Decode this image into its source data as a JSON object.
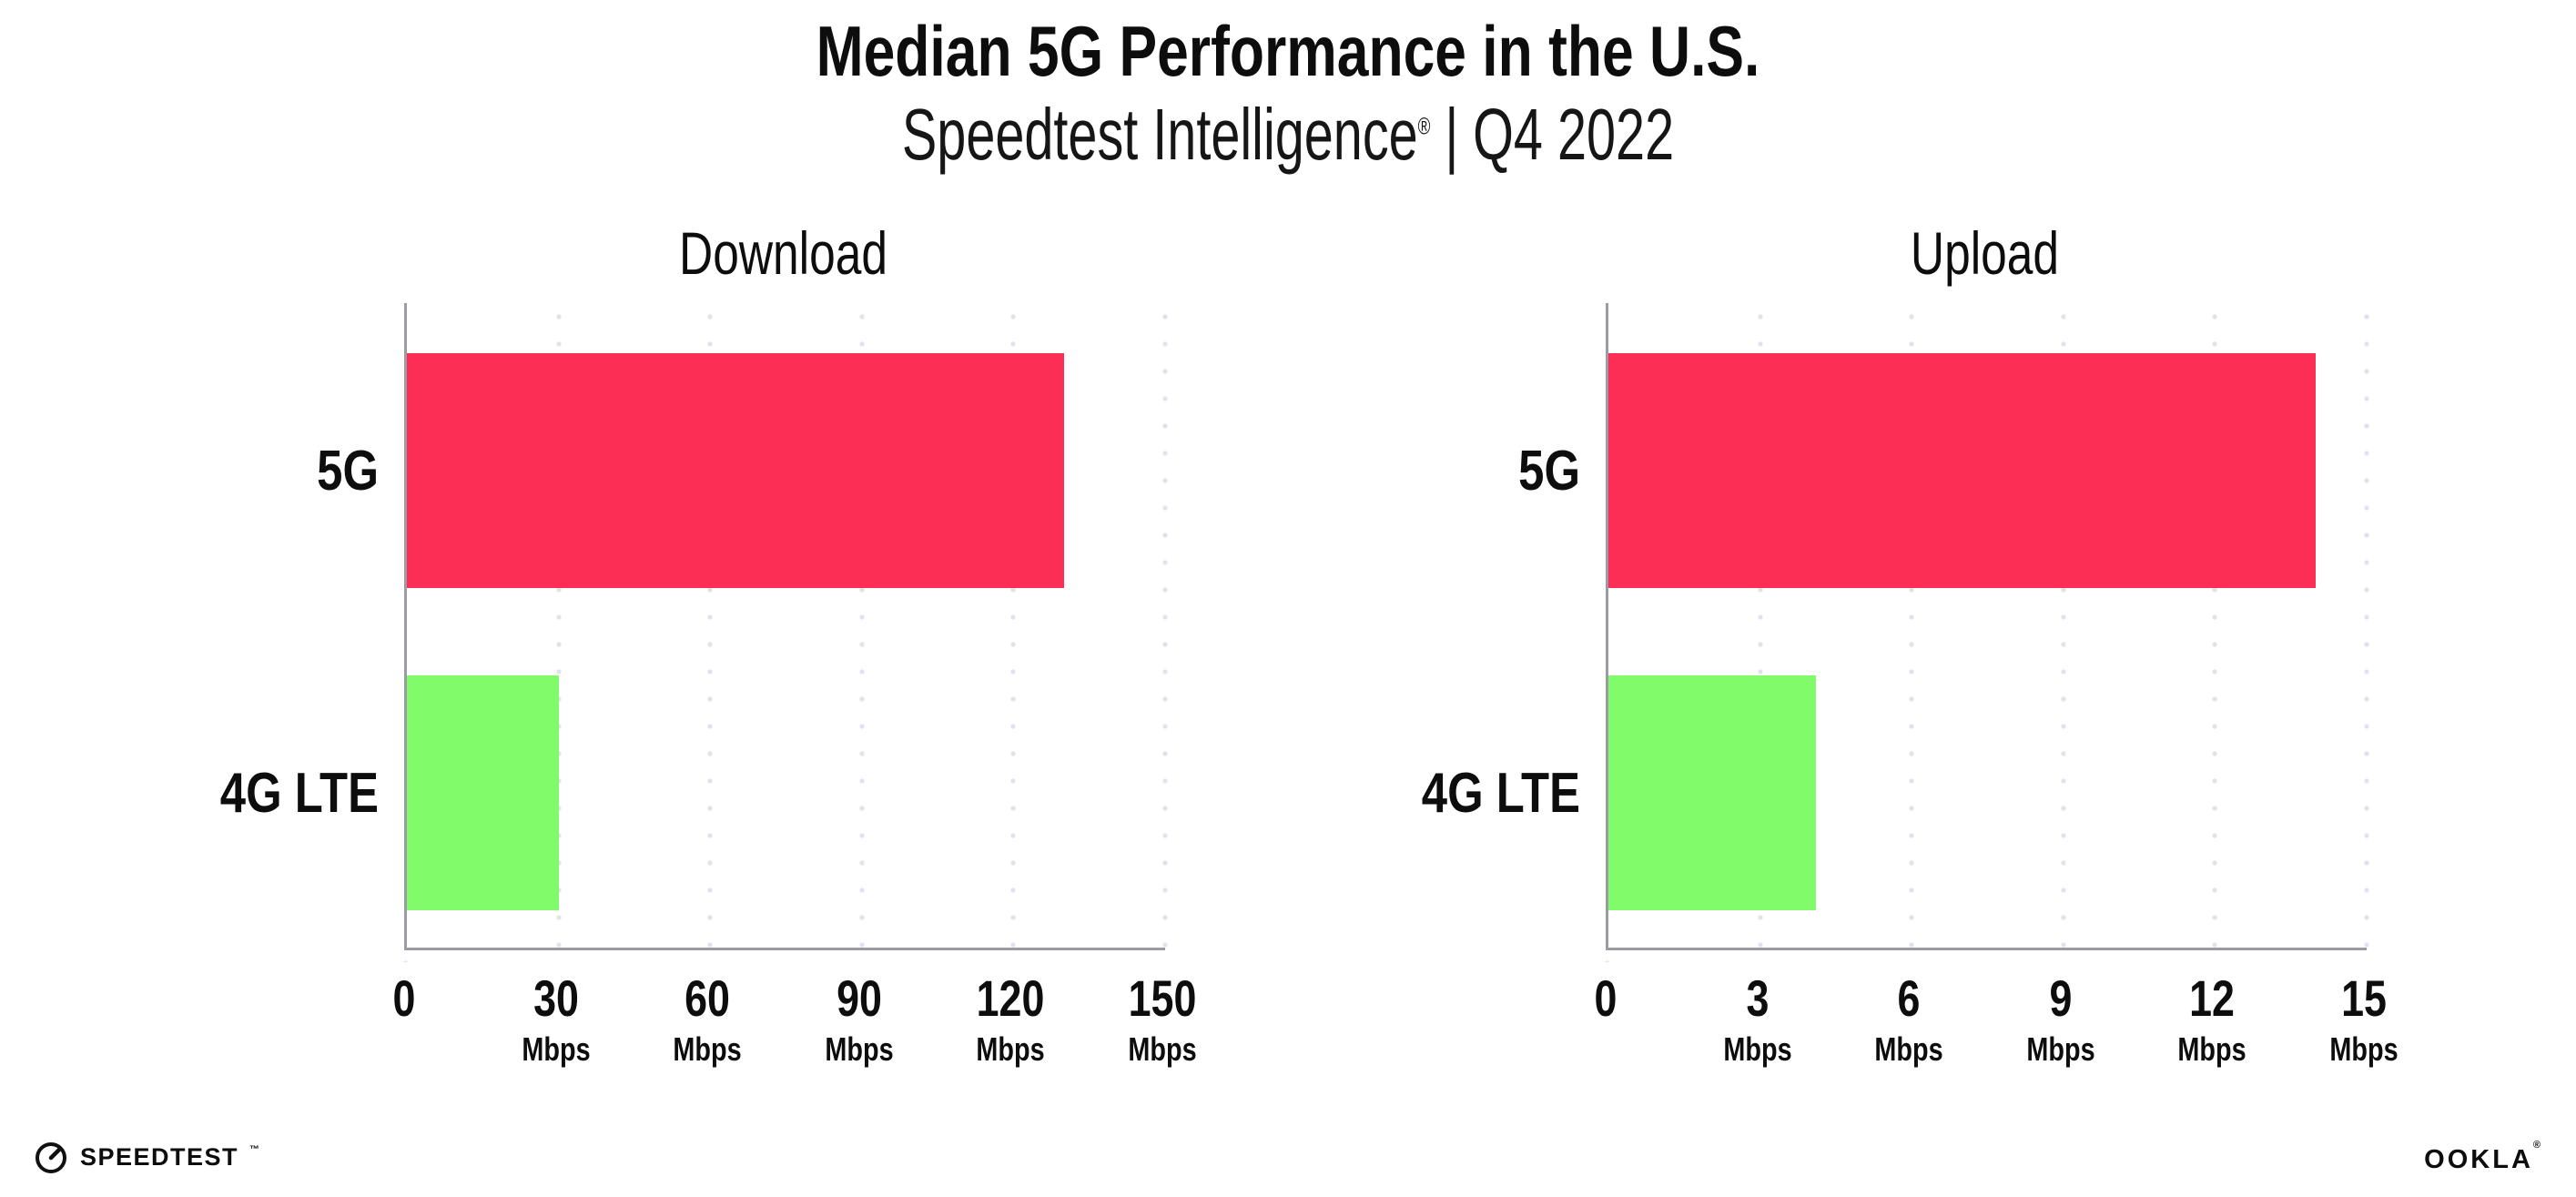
{
  "header": {
    "title": "Median 5G Performance in the U.S.",
    "subtitle_brand": "Speedtest Intelligence",
    "subtitle_reg": "®",
    "subtitle_sep": "|",
    "subtitle_period": "Q4 2022"
  },
  "colors": {
    "bar_5g": "#fc2e56",
    "bar_4g_lte": "#80fb69",
    "axis_line": "#9b9ba3",
    "gridline": "#e2e2ec",
    "text": "#0d0d0d",
    "background": "#ffffff"
  },
  "chart_data": [
    {
      "type": "bar",
      "orientation": "horizontal",
      "title": "Download",
      "categories": [
        "5G",
        "4G LTE"
      ],
      "values": [
        130,
        30
      ],
      "unit": "Mbps",
      "xlim": [
        0,
        150
      ],
      "xticks": [
        0,
        30,
        60,
        90,
        120,
        150
      ],
      "tick_unit_label": "Mbps",
      "grid": "dotted-vertical",
      "legend": "none",
      "bar_colors": [
        "#fc2e56",
        "#80fb69"
      ]
    },
    {
      "type": "bar",
      "orientation": "horizontal",
      "title": "Upload",
      "categories": [
        "5G",
        "4G LTE"
      ],
      "values": [
        14,
        4.1
      ],
      "unit": "Mbps",
      "xlim": [
        0,
        15
      ],
      "xticks": [
        0,
        3,
        6,
        9,
        12,
        15
      ],
      "tick_unit_label": "Mbps",
      "grid": "dotted-vertical",
      "legend": "none",
      "bar_colors": [
        "#fc2e56",
        "#80fb69"
      ]
    }
  ],
  "footer": {
    "speedtest_label": "SPEEDTEST",
    "speedtest_tm": "™",
    "ookla_label": "OOKLA",
    "ookla_reg": "®"
  }
}
